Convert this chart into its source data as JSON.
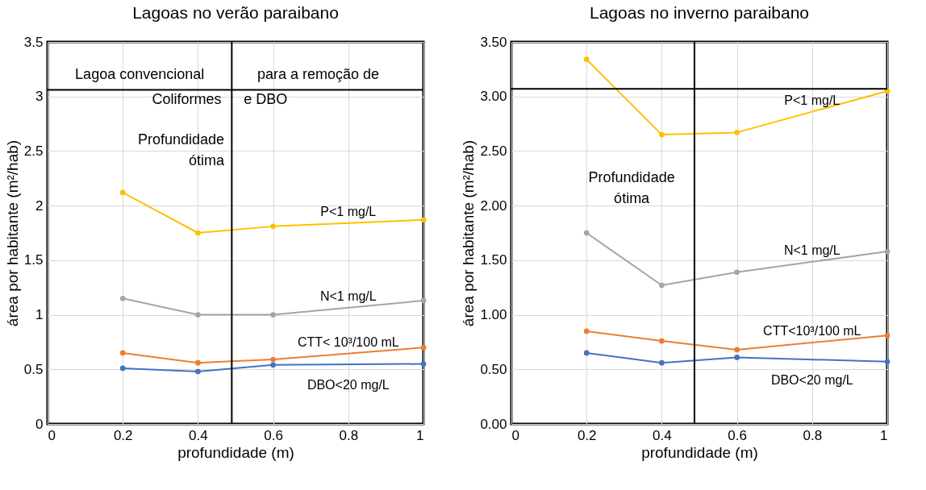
{
  "chart_data": [
    {
      "type": "line",
      "title": "Lagoas no verão paraibano",
      "xlabel": "profundidade (m)",
      "ylabel": "área por habitante (m²/hab)",
      "x": [
        0.2,
        0.4,
        0.6,
        1
      ],
      "xlim": [
        0,
        1
      ],
      "xticks": [
        0,
        0.2,
        0.4,
        0.6,
        0.8,
        1
      ],
      "ylim": [
        0,
        3.5
      ],
      "yticks": [
        0,
        0.5,
        1,
        1.5,
        2,
        2.5,
        3,
        3.5
      ],
      "grid": true,
      "marker": "circle",
      "legend": false,
      "series": [
        {
          "name": "P<1 mg/L",
          "color": "#ffc000",
          "values": [
            2.12,
            1.75,
            1.81,
            1.87
          ]
        },
        {
          "name": "N<1 mg/L",
          "color": "#a5a5a5",
          "values": [
            1.15,
            1.0,
            1.0,
            1.13
          ]
        },
        {
          "name": "CTT< 10³/100 mL",
          "color": "#ed7d31",
          "values": [
            0.65,
            0.56,
            0.59,
            0.7
          ]
        },
        {
          "name": "DBO<20 mg/L",
          "color": "#4472c4",
          "values": [
            0.51,
            0.48,
            0.54,
            0.55
          ]
        }
      ],
      "ref_lines": [
        {
          "axis": "x",
          "value": 0.49
        },
        {
          "axis": "y",
          "value": 3.06
        }
      ],
      "annotations": [
        "Lagoa convencional",
        "para a remoção de",
        "Coliformes",
        "e DBO",
        "Profundidade ótima"
      ]
    },
    {
      "type": "line",
      "title": "Lagoas no inverno paraibano",
      "xlabel": "profundidade (m)",
      "ylabel": "área por habitante (m²/hab)",
      "x": [
        0.2,
        0.4,
        0.6,
        1
      ],
      "xlim": [
        0,
        1
      ],
      "xticks": [
        0,
        0.2,
        0.4,
        0.6,
        0.8,
        1
      ],
      "ylim": [
        0,
        3.5
      ],
      "yticks": [
        {
          "value": 0,
          "label": "0.00"
        },
        {
          "value": 0.5,
          "label": "0.50"
        },
        {
          "value": 1,
          "label": "1.00"
        },
        {
          "value": 1.5,
          "label": "1.50"
        },
        {
          "value": 2,
          "label": "2.00"
        },
        {
          "value": 2.5,
          "label": "2.50"
        },
        {
          "value": 3,
          "label": "3.00"
        },
        {
          "value": 3.5,
          "label": "3.50"
        }
      ],
      "grid": true,
      "marker": "circle",
      "legend": false,
      "series": [
        {
          "name": "P<1 mg/L",
          "color": "#ffc000",
          "values": [
            3.34,
            2.65,
            2.67,
            3.05
          ]
        },
        {
          "name": "N<1 mg/L",
          "color": "#a5a5a5",
          "values": [
            1.75,
            1.27,
            1.39,
            1.58
          ]
        },
        {
          "name": "CTT<10³/100 mL",
          "color": "#ed7d31",
          "values": [
            0.85,
            0.76,
            0.68,
            0.81
          ]
        },
        {
          "name": "DBO<20 mg/L",
          "color": "#4472c4",
          "values": [
            0.65,
            0.56,
            0.61,
            0.57
          ]
        }
      ],
      "ref_lines": [
        {
          "axis": "x",
          "value": 0.487
        },
        {
          "axis": "y",
          "value": 3.07
        }
      ],
      "annotations": [
        "Profundidade ótima"
      ]
    }
  ]
}
